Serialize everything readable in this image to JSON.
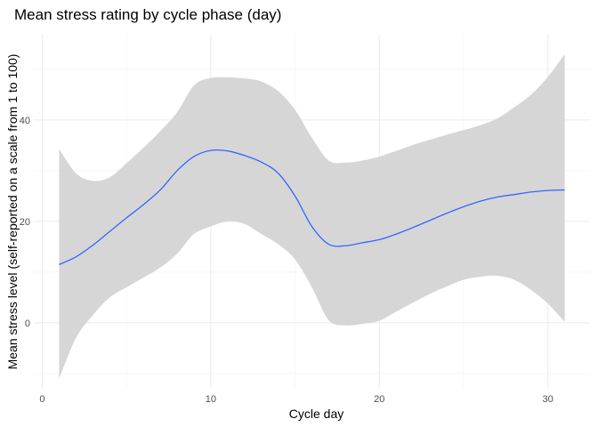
{
  "chart_data": {
    "type": "line",
    "title": "Mean stress rating by cycle phase (day)",
    "xlabel": "Cycle day",
    "ylabel": "Mean stress level (self-reported on a scale from 1 to 100)",
    "xlim": [
      -0.5,
      32.5
    ],
    "ylim": [
      -13,
      57
    ],
    "x_ticks": [
      0,
      10,
      20,
      30
    ],
    "y_ticks": [
      0,
      20,
      40
    ],
    "grid": true,
    "legend": "none",
    "colors": {
      "line": "#3366ff",
      "ribbon": "#d6d6d6"
    },
    "series": [
      {
        "x": [
          1,
          2,
          3,
          4,
          5,
          6,
          7,
          8,
          9,
          10,
          11,
          12,
          13,
          14,
          15,
          16,
          17,
          18,
          19,
          20,
          21,
          22,
          23,
          24,
          25,
          26,
          27,
          28,
          29,
          30,
          31
        ],
        "y": [
          11.5,
          13,
          15.3,
          18,
          20.7,
          23.3,
          26.2,
          30,
          32.8,
          34,
          33.9,
          33,
          31.7,
          29.5,
          25,
          19,
          15.5,
          15.2,
          15.8,
          16.4,
          17.5,
          18.8,
          20.2,
          21.6,
          22.9,
          24,
          24.8,
          25.3,
          25.8,
          26.1,
          26.2
        ],
        "lower": [
          -11,
          -3,
          1.5,
          5,
          7,
          8.9,
          10.9,
          13.6,
          17.5,
          19,
          20,
          19.5,
          17.5,
          15.5,
          12.5,
          7,
          0.5,
          -0.5,
          -0.2,
          0.4,
          2.2,
          4,
          5.7,
          7.2,
          8.5,
          9.1,
          9.3,
          8.5,
          6.5,
          3.8,
          0.2
        ],
        "upper": [
          34.3,
          29.5,
          28,
          28.7,
          31.5,
          34.5,
          37.8,
          41.5,
          46.8,
          48.3,
          48.4,
          48.2,
          47.6,
          45.7,
          42,
          36.5,
          32,
          31.6,
          32,
          32.8,
          33.9,
          35.1,
          36.1,
          37.1,
          38,
          39,
          40.3,
          42.5,
          45,
          48.5,
          53
        ]
      }
    ]
  }
}
